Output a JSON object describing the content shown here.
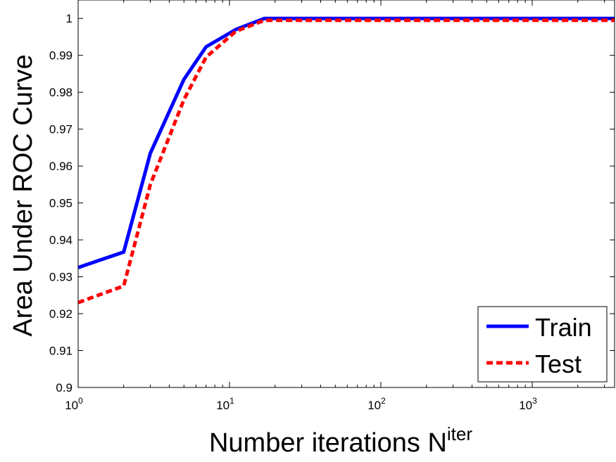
{
  "chart_data": {
    "type": "line",
    "xscale": "log",
    "xlim": [
      1,
      3500
    ],
    "ylim": [
      0.9,
      1.005
    ],
    "xticks": [
      {
        "value": 1,
        "base": "10",
        "exp": "0"
      },
      {
        "value": 10,
        "base": "10",
        "exp": "1"
      },
      {
        "value": 100,
        "base": "10",
        "exp": "2"
      },
      {
        "value": 1000,
        "base": "10",
        "exp": "3"
      }
    ],
    "yticks": [
      {
        "value": 0.9,
        "label": "0.9"
      },
      {
        "value": 0.91,
        "label": "0.91"
      },
      {
        "value": 0.92,
        "label": "0.92"
      },
      {
        "value": 0.93,
        "label": "0.93"
      },
      {
        "value": 0.94,
        "label": "0.94"
      },
      {
        "value": 0.95,
        "label": "0.95"
      },
      {
        "value": 0.96,
        "label": "0.96"
      },
      {
        "value": 0.97,
        "label": "0.97"
      },
      {
        "value": 0.98,
        "label": "0.98"
      },
      {
        "value": 0.99,
        "label": "0.99"
      },
      {
        "value": 1.0,
        "label": "1"
      }
    ],
    "xlabel": "Number iterations N",
    "xlabel_sup": "iter",
    "ylabel": "Area Under ROC Curve",
    "grid": false,
    "legend_position": "bottom-right",
    "series": [
      {
        "name": "Train",
        "color": "#0000ff",
        "style": "solid",
        "x": [
          1,
          2,
          3,
          5,
          7,
          11,
          17,
          3500
        ],
        "y": [
          0.9325,
          0.9367,
          0.9635,
          0.9835,
          0.9923,
          0.997,
          1.0,
          1.0
        ]
      },
      {
        "name": "Test",
        "color": "#ff0000",
        "style": "dashed",
        "x": [
          1,
          2,
          3,
          5,
          7,
          11,
          17,
          3500
        ],
        "y": [
          0.923,
          0.9275,
          0.955,
          0.978,
          0.9895,
          0.9965,
          0.9995,
          0.9995
        ]
      }
    ]
  }
}
